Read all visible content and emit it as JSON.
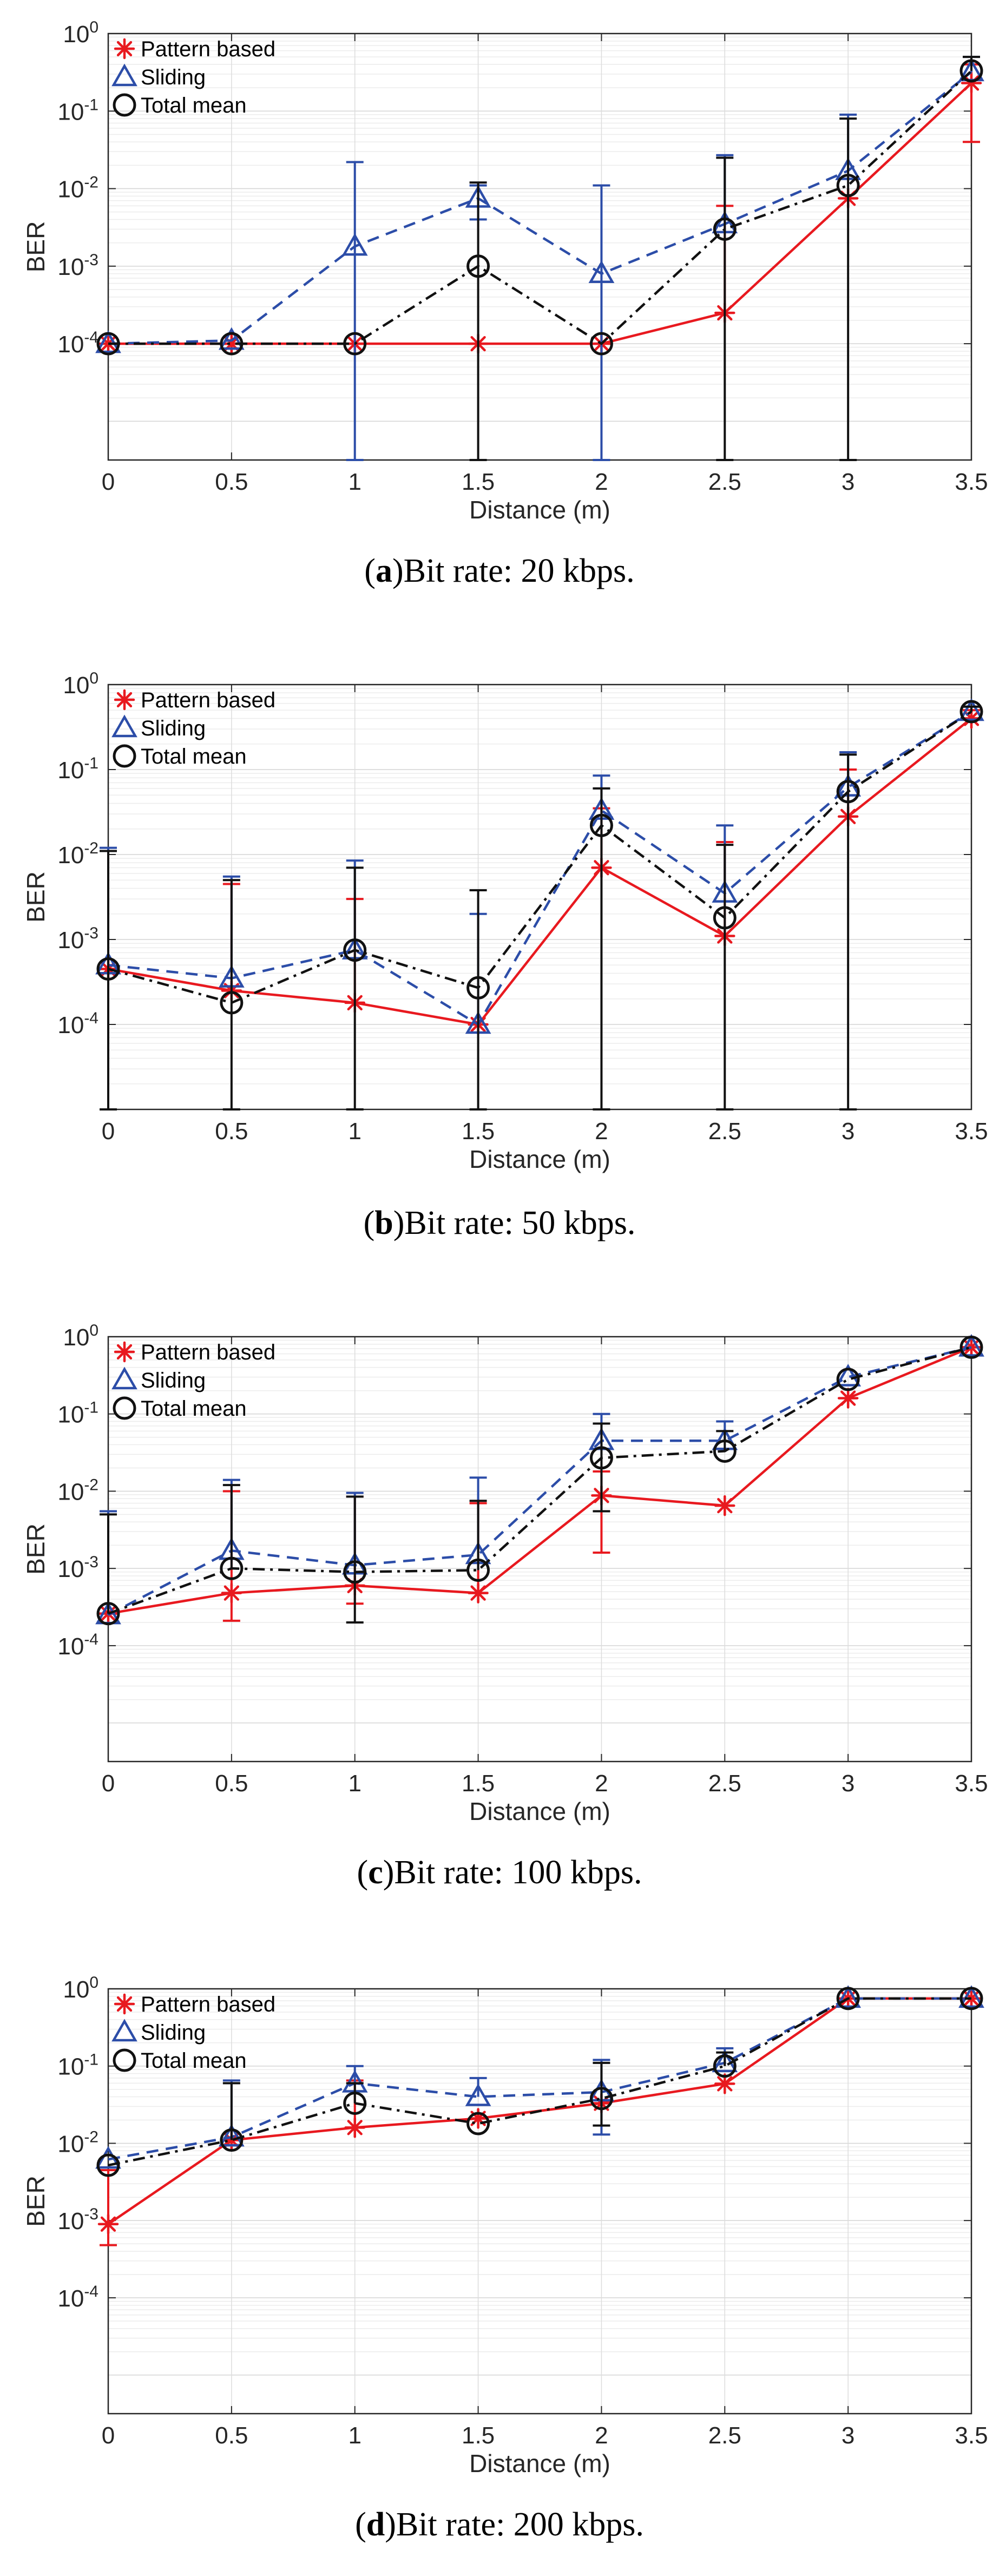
{
  "figure": {
    "caption_paren_open": "(",
    "caption_paren_close": ")"
  },
  "chart_data": [
    {
      "type": "line",
      "panel_label": "a",
      "caption": "Bit rate: 20 kbps.",
      "xlabel": "Distance (m)",
      "ylabel": "BER",
      "xlim": [
        0,
        3.5
      ],
      "ylim_log10": [
        -5.5,
        0
      ],
      "grid": true,
      "legend_position": "top-left",
      "x": [
        0,
        0.5,
        1,
        1.5,
        2,
        2.5,
        3,
        3.5
      ],
      "x_tick_labels": [
        "0",
        "0.5",
        "1",
        "1.5",
        "2",
        "2.5",
        "3",
        "3.5"
      ],
      "y_tick_values": [
        0.0001,
        0.001,
        0.01,
        0.1,
        1
      ],
      "y_tick_bases": [
        "10",
        "10",
        "10",
        "10",
        "10"
      ],
      "y_tick_exponents": [
        "-4",
        "-3",
        "-2",
        "-1",
        "0"
      ],
      "series": [
        {
          "name": "Pattern based",
          "color": "#e8191f",
          "marker": "star",
          "dash": "solid",
          "values": [
            0.0001,
            0.0001,
            0.0001,
            0.0001,
            0.0001,
            0.00025,
            0.0075,
            0.23
          ],
          "err_low": [
            null,
            null,
            null,
            null,
            null,
            null,
            null,
            0.04
          ],
          "err_high": [
            null,
            null,
            null,
            null,
            null,
            0.006,
            null,
            0.4
          ]
        },
        {
          "name": "Sliding",
          "color": "#2c4da8",
          "marker": "triangle",
          "dash": "dashed",
          "values": [
            0.0001,
            0.00011,
            0.0018,
            0.0075,
            0.0008,
            0.0035,
            0.017,
            0.32
          ],
          "err_low": [
            null,
            null,
            3e-06,
            0.004,
            3e-06,
            null,
            null,
            null
          ],
          "err_high": [
            null,
            null,
            0.022,
            0.011,
            0.011,
            0.027,
            0.09,
            0.5
          ]
        },
        {
          "name": "Total mean",
          "color": "#111111",
          "marker": "circle",
          "dash": "dashdot",
          "values": [
            0.0001,
            0.0001,
            0.0001,
            0.001,
            0.0001,
            0.003,
            0.011,
            0.33
          ],
          "err_low": [
            null,
            null,
            null,
            3e-06,
            null,
            3e-06,
            3e-06,
            null
          ],
          "err_high": [
            null,
            null,
            null,
            0.012,
            null,
            0.025,
            0.08,
            0.5
          ]
        }
      ]
    },
    {
      "type": "line",
      "panel_label": "b",
      "caption": "Bit rate: 50 kbps.",
      "xlabel": "Distance (m)",
      "ylabel": "BER",
      "xlim": [
        0,
        3.5
      ],
      "ylim_log10": [
        -5,
        0
      ],
      "grid": true,
      "legend_position": "top-left",
      "x": [
        0,
        0.5,
        1,
        1.5,
        2,
        2.5,
        3,
        3.5
      ],
      "x_tick_labels": [
        "0",
        "0.5",
        "1",
        "1.5",
        "2",
        "2.5",
        "3",
        "3.5"
      ],
      "y_tick_values": [
        0.0001,
        0.001,
        0.01,
        0.1,
        1
      ],
      "y_tick_bases": [
        "10",
        "10",
        "10",
        "10",
        "10"
      ],
      "y_tick_exponents": [
        "-4",
        "-3",
        "-2",
        "-1",
        "0"
      ],
      "series": [
        {
          "name": "Pattern based",
          "color": "#e8191f",
          "marker": "star",
          "dash": "solid",
          "values": [
            0.00045,
            0.00025,
            0.00018,
            0.0001,
            0.007,
            0.0011,
            0.028,
            0.4
          ],
          "err_low": [
            null,
            null,
            null,
            null,
            null,
            null,
            null,
            null
          ],
          "err_high": [
            null,
            0.0045,
            0.003,
            null,
            0.035,
            0.014,
            0.1,
            0.5
          ]
        },
        {
          "name": "Sliding",
          "color": "#2c4da8",
          "marker": "triangle",
          "dash": "dashed",
          "values": [
            0.0005,
            0.00035,
            0.00075,
            0.0001,
            0.033,
            0.0035,
            0.062,
            0.48
          ],
          "err_low": [
            null,
            null,
            null,
            null,
            null,
            null,
            null,
            null
          ],
          "err_high": [
            0.012,
            0.0055,
            0.0085,
            0.002,
            0.085,
            0.022,
            0.16,
            0.55
          ]
        },
        {
          "name": "Total mean",
          "color": "#111111",
          "marker": "circle",
          "dash": "dashdot",
          "values": [
            0.00045,
            0.00018,
            0.00075,
            0.00027,
            0.022,
            0.0018,
            0.055,
            0.48
          ],
          "err_low": [
            1e-05,
            1e-05,
            1e-05,
            1e-05,
            1e-05,
            1e-05,
            1e-05,
            null
          ],
          "err_high": [
            0.011,
            0.005,
            0.007,
            0.0038,
            0.06,
            0.013,
            0.15,
            0.55
          ]
        }
      ]
    },
    {
      "type": "line",
      "panel_label": "c",
      "caption": "Bit rate: 100 kbps.",
      "xlabel": "Distance (m)",
      "ylabel": "BER",
      "xlim": [
        0,
        3.5
      ],
      "ylim_log10": [
        -5.5,
        0
      ],
      "grid": true,
      "legend_position": "top-left",
      "x": [
        0,
        0.5,
        1,
        1.5,
        2,
        2.5,
        3,
        3.5
      ],
      "x_tick_labels": [
        "0",
        "0.5",
        "1",
        "1.5",
        "2",
        "2.5",
        "3",
        "3.5"
      ],
      "y_tick_values": [
        0.0001,
        0.001,
        0.01,
        0.1,
        1
      ],
      "y_tick_bases": [
        "10",
        "10",
        "10",
        "10",
        "10"
      ],
      "y_tick_exponents": [
        "-4",
        "-3",
        "-2",
        "-1",
        "0"
      ],
      "series": [
        {
          "name": "Pattern based",
          "color": "#e8191f",
          "marker": "star",
          "dash": "solid",
          "values": [
            0.00026,
            0.00048,
            0.0006,
            0.00048,
            0.0088,
            0.0065,
            0.16,
            0.73
          ],
          "err_low": [
            null,
            0.00021,
            0.00035,
            null,
            0.0016,
            null,
            null,
            null
          ],
          "err_high": [
            null,
            0.01,
            0.0085,
            0.007,
            0.018,
            null,
            null,
            null
          ]
        },
        {
          "name": "Sliding",
          "color": "#2c4da8",
          "marker": "triangle",
          "dash": "dashed",
          "values": [
            0.00025,
            0.0017,
            0.0011,
            0.0015,
            0.045,
            0.045,
            0.3,
            0.73
          ],
          "err_low": [
            null,
            null,
            null,
            null,
            null,
            null,
            null,
            null
          ],
          "err_high": [
            0.0055,
            0.014,
            0.0095,
            0.015,
            0.1,
            0.08,
            null,
            null
          ]
        },
        {
          "name": "Total mean",
          "color": "#111111",
          "marker": "circle",
          "dash": "dashdot",
          "values": [
            0.00026,
            0.001,
            0.0009,
            0.00095,
            0.027,
            0.033,
            0.28,
            0.73
          ],
          "err_low": [
            null,
            null,
            0.0002,
            null,
            0.0055,
            null,
            null,
            null
          ],
          "err_high": [
            0.005,
            0.012,
            0.0085,
            0.0075,
            0.075,
            0.06,
            null,
            null
          ]
        }
      ]
    },
    {
      "type": "line",
      "panel_label": "d",
      "caption": "Bit rate: 200 kbps.",
      "xlabel": "Distance (m)",
      "ylabel": "BER",
      "xlim": [
        0,
        3.5
      ],
      "ylim_log10": [
        -5.5,
        0
      ],
      "grid": true,
      "legend_position": "top-left",
      "x": [
        0,
        0.5,
        1,
        1.5,
        2,
        2.5,
        3,
        3.5
      ],
      "x_tick_labels": [
        "0",
        "0.5",
        "1",
        "1.5",
        "2",
        "2.5",
        "3",
        "3.5"
      ],
      "y_tick_values": [
        0.0001,
        0.001,
        0.01,
        0.1,
        1
      ],
      "y_tick_bases": [
        "10",
        "10",
        "10",
        "10",
        "10"
      ],
      "y_tick_exponents": [
        "-4",
        "-3",
        "-2",
        "-1",
        "0"
      ],
      "series": [
        {
          "name": "Pattern based",
          "color": "#e8191f",
          "marker": "star",
          "dash": "solid",
          "values": [
            0.0009,
            0.011,
            0.016,
            0.021,
            0.033,
            0.059,
            0.75,
            0.75
          ],
          "err_low": [
            0.00048,
            null,
            null,
            null,
            null,
            null,
            null,
            null
          ],
          "err_high": [
            0.0045,
            null,
            0.065,
            null,
            null,
            null,
            null,
            null
          ]
        },
        {
          "name": "Sliding",
          "color": "#2c4da8",
          "marker": "triangle",
          "dash": "dashed",
          "values": [
            0.0062,
            0.012,
            0.06,
            0.04,
            0.046,
            0.11,
            0.75,
            0.75
          ],
          "err_low": [
            null,
            null,
            null,
            null,
            0.013,
            null,
            null,
            null
          ],
          "err_high": [
            null,
            0.065,
            0.1,
            0.07,
            0.12,
            0.17,
            null,
            null
          ]
        },
        {
          "name": "Total mean",
          "color": "#111111",
          "marker": "circle",
          "dash": "dashdot",
          "values": [
            0.0052,
            0.011,
            0.033,
            0.018,
            0.038,
            0.1,
            0.75,
            0.75
          ],
          "err_low": [
            null,
            null,
            null,
            null,
            0.017,
            null,
            null,
            null
          ],
          "err_high": [
            null,
            0.06,
            0.06,
            null,
            0.11,
            0.15,
            null,
            null
          ]
        }
      ]
    }
  ]
}
